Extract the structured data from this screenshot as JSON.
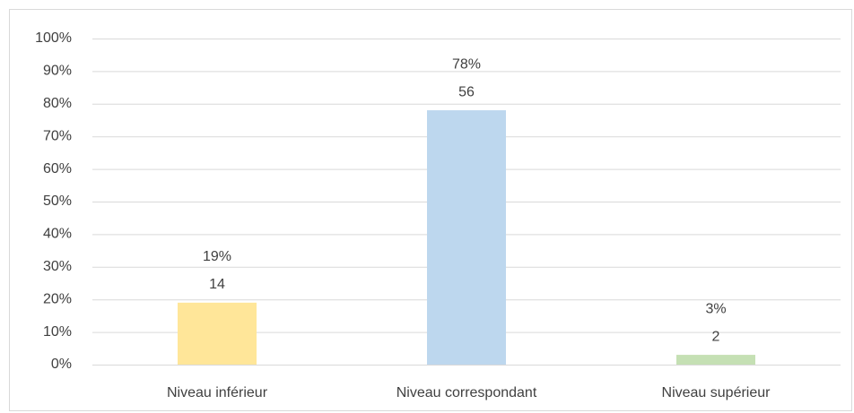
{
  "chart_data": {
    "type": "bar",
    "categories": [
      "Niveau inférieur",
      "Niveau correspondant",
      "Niveau supérieur"
    ],
    "values": [
      19,
      78,
      3
    ],
    "value_labels": [
      "19%",
      "78%",
      "3%"
    ],
    "counts": [
      14,
      56,
      2
    ],
    "colors": [
      "#ffe699",
      "#bdd7ee",
      "#c5e0b4"
    ],
    "ylim": [
      0,
      100
    ],
    "yticks": [
      {
        "value": 0,
        "label": "0%"
      },
      {
        "value": 10,
        "label": "10%"
      },
      {
        "value": 20,
        "label": "20%"
      },
      {
        "value": 30,
        "label": "30%"
      },
      {
        "value": 40,
        "label": "40%"
      },
      {
        "value": 50,
        "label": "50%"
      },
      {
        "value": 60,
        "label": "60%"
      },
      {
        "value": 70,
        "label": "70%"
      },
      {
        "value": 80,
        "label": "80%"
      },
      {
        "value": 90,
        "label": "90%"
      },
      {
        "value": 100,
        "label": "100%"
      }
    ],
    "grid": true
  }
}
